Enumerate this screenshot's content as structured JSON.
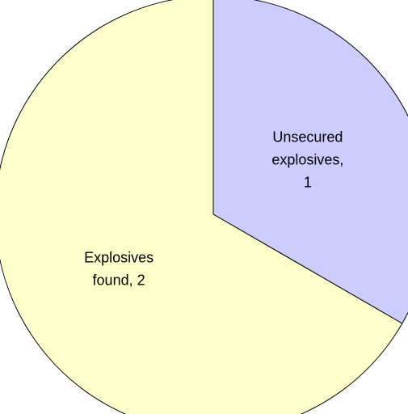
{
  "chart_data": {
    "type": "pie",
    "title": "",
    "slices": [
      {
        "name": "Unsecured explosives",
        "value": 1,
        "color": "#ccccff",
        "label_lines": [
          "Unsecured",
          "explosives,",
          "1"
        ]
      },
      {
        "name": "Explosives found",
        "value": 2,
        "color": "#ffffcc",
        "label_lines": [
          "Explosives",
          "found, 2"
        ]
      }
    ],
    "start_angle_deg": 0,
    "direction": "clockwise",
    "legend": "none"
  }
}
